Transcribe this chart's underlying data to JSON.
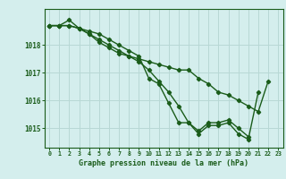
{
  "hours": [
    0,
    1,
    2,
    3,
    4,
    5,
    6,
    7,
    8,
    9,
    10,
    11,
    12,
    13,
    14,
    15,
    16,
    17,
    18,
    19,
    20,
    21,
    22,
    23
  ],
  "series1": [
    1018.7,
    1018.7,
    1018.9,
    1018.6,
    1018.5,
    1018.4,
    1018.2,
    1018.0,
    1017.8,
    1017.6,
    1016.8,
    1016.6,
    1015.9,
    1015.2,
    1015.2,
    1014.8,
    1015.1,
    1015.1,
    1015.2,
    1014.8,
    1014.6,
    1016.3,
    null,
    null
  ],
  "series2": [
    1018.7,
    1018.7,
    1018.7,
    1018.6,
    1018.4,
    1018.2,
    1018.0,
    1017.8,
    1017.6,
    1017.4,
    1017.1,
    1016.7,
    1016.3,
    1015.8,
    1015.2,
    1014.9,
    1015.2,
    1015.2,
    1015.3,
    1015.0,
    1014.7,
    null,
    null,
    null
  ],
  "series3": [
    1018.7,
    1018.7,
    1018.7,
    1018.6,
    1018.4,
    1018.1,
    1017.9,
    1017.7,
    1017.6,
    1017.5,
    1017.4,
    1017.3,
    1017.2,
    1017.1,
    1017.1,
    1016.8,
    1016.6,
    1016.3,
    1016.2,
    1016.0,
    1015.8,
    1015.6,
    1016.7,
    null
  ],
  "ylim": [
    1014.3,
    1019.3
  ],
  "yticks": [
    1015,
    1016,
    1017,
    1018
  ],
  "xticks": [
    0,
    1,
    2,
    3,
    4,
    5,
    6,
    7,
    8,
    9,
    10,
    11,
    12,
    13,
    14,
    15,
    16,
    17,
    18,
    19,
    20,
    21,
    22,
    23
  ],
  "xlabel": "Graphe pression niveau de la mer (hPa)",
  "line_color": "#1a5c1a",
  "bg_color": "#d4eeed",
  "grid_color": "#b8d8d5",
  "marker": "D",
  "marker_size": 2.2,
  "line_width": 1.0
}
